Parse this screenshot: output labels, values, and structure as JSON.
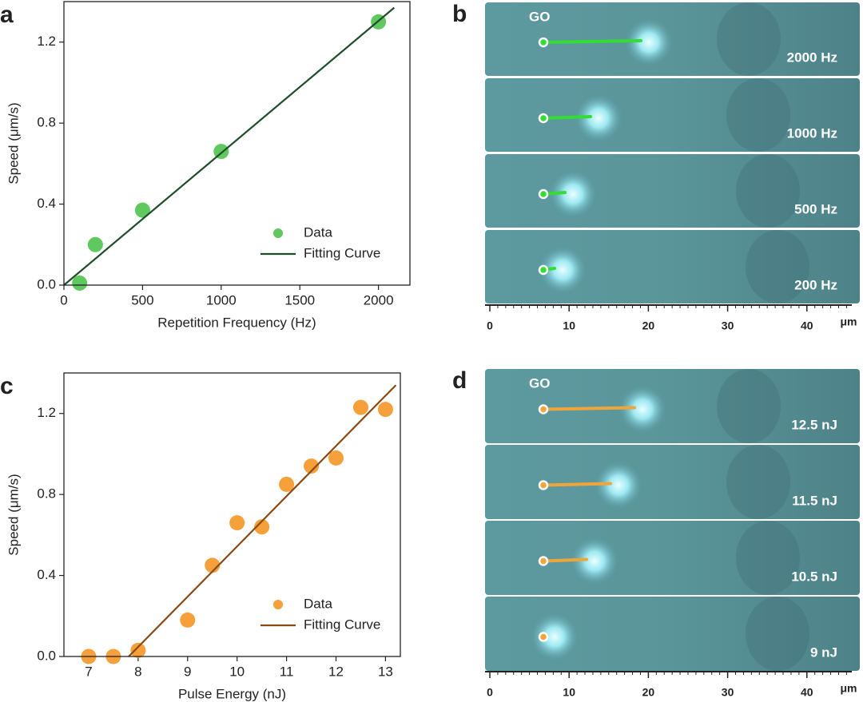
{
  "chart_data": [
    {
      "type": "scatter",
      "panel": "a",
      "x_label": "Repetition Frequency (Hz)",
      "y_label": "Speed (μm/s)",
      "xlim": [
        0,
        2200
      ],
      "ylim": [
        0,
        1.4
      ],
      "xticks": [
        0,
        500,
        1000,
        1500,
        2000
      ],
      "yticks": [
        {
          "value": 0,
          "label": "0.0"
        },
        0.4,
        0.8,
        1.2
      ],
      "legend": "lower right",
      "series": [
        {
          "name": "Data",
          "type": "scatter",
          "color": "#5fc85e",
          "x": [
            100,
            200,
            500,
            1000,
            2000
          ],
          "values": [
            0.01,
            0.2,
            0.37,
            0.66,
            1.3
          ]
        },
        {
          "name": "Fitting Curve",
          "type": "line",
          "color": "#1f4d2a",
          "x": [
            0,
            2100
          ],
          "values": [
            0,
            1.37
          ]
        }
      ]
    },
    {
      "type": "scatter",
      "panel": "c",
      "x_label": "Pulse Energy (nJ)",
      "y_label": "Speed (μm/s)",
      "xlim": [
        6.5,
        13.3
      ],
      "ylim": [
        0,
        1.4
      ],
      "xticks": [
        7,
        8,
        9,
        10,
        11,
        12,
        13
      ],
      "yticks": [
        {
          "value": 0,
          "label": "0.0"
        },
        0.4,
        0.8,
        1.2
      ],
      "legend": "lower right",
      "series": [
        {
          "name": "Data",
          "type": "scatter",
          "color": "#f5a03a",
          "x": [
            7,
            7.5,
            8,
            9,
            9.5,
            10,
            10.5,
            11,
            11.5,
            12,
            12.5,
            13
          ],
          "values": [
            0,
            0,
            0.03,
            0.18,
            0.45,
            0.66,
            0.64,
            0.85,
            0.94,
            0.98,
            1.23,
            1.22
          ]
        },
        {
          "name": "Fitting Curve",
          "type": "line",
          "color": "#8a4a14",
          "x": [
            7.81,
            13.21
          ],
          "values": [
            0,
            1.34
          ]
        }
      ]
    }
  ],
  "images": [
    {
      "panel": "b",
      "label": "GO",
      "frames": [
        "2000 Hz",
        "1000 Hz",
        "500 Hz",
        "200 Hz"
      ],
      "scale_ticks": [
        0,
        10,
        20,
        30,
        40
      ],
      "scale_unit": "μm"
    },
    {
      "panel": "d",
      "label": "GO",
      "frames": [
        "12.5 nJ",
        "11.5 nJ",
        "10.5 nJ",
        "9 nJ"
      ],
      "scale_ticks": [
        0,
        10,
        20,
        30,
        40
      ],
      "scale_unit": "μm"
    }
  ]
}
